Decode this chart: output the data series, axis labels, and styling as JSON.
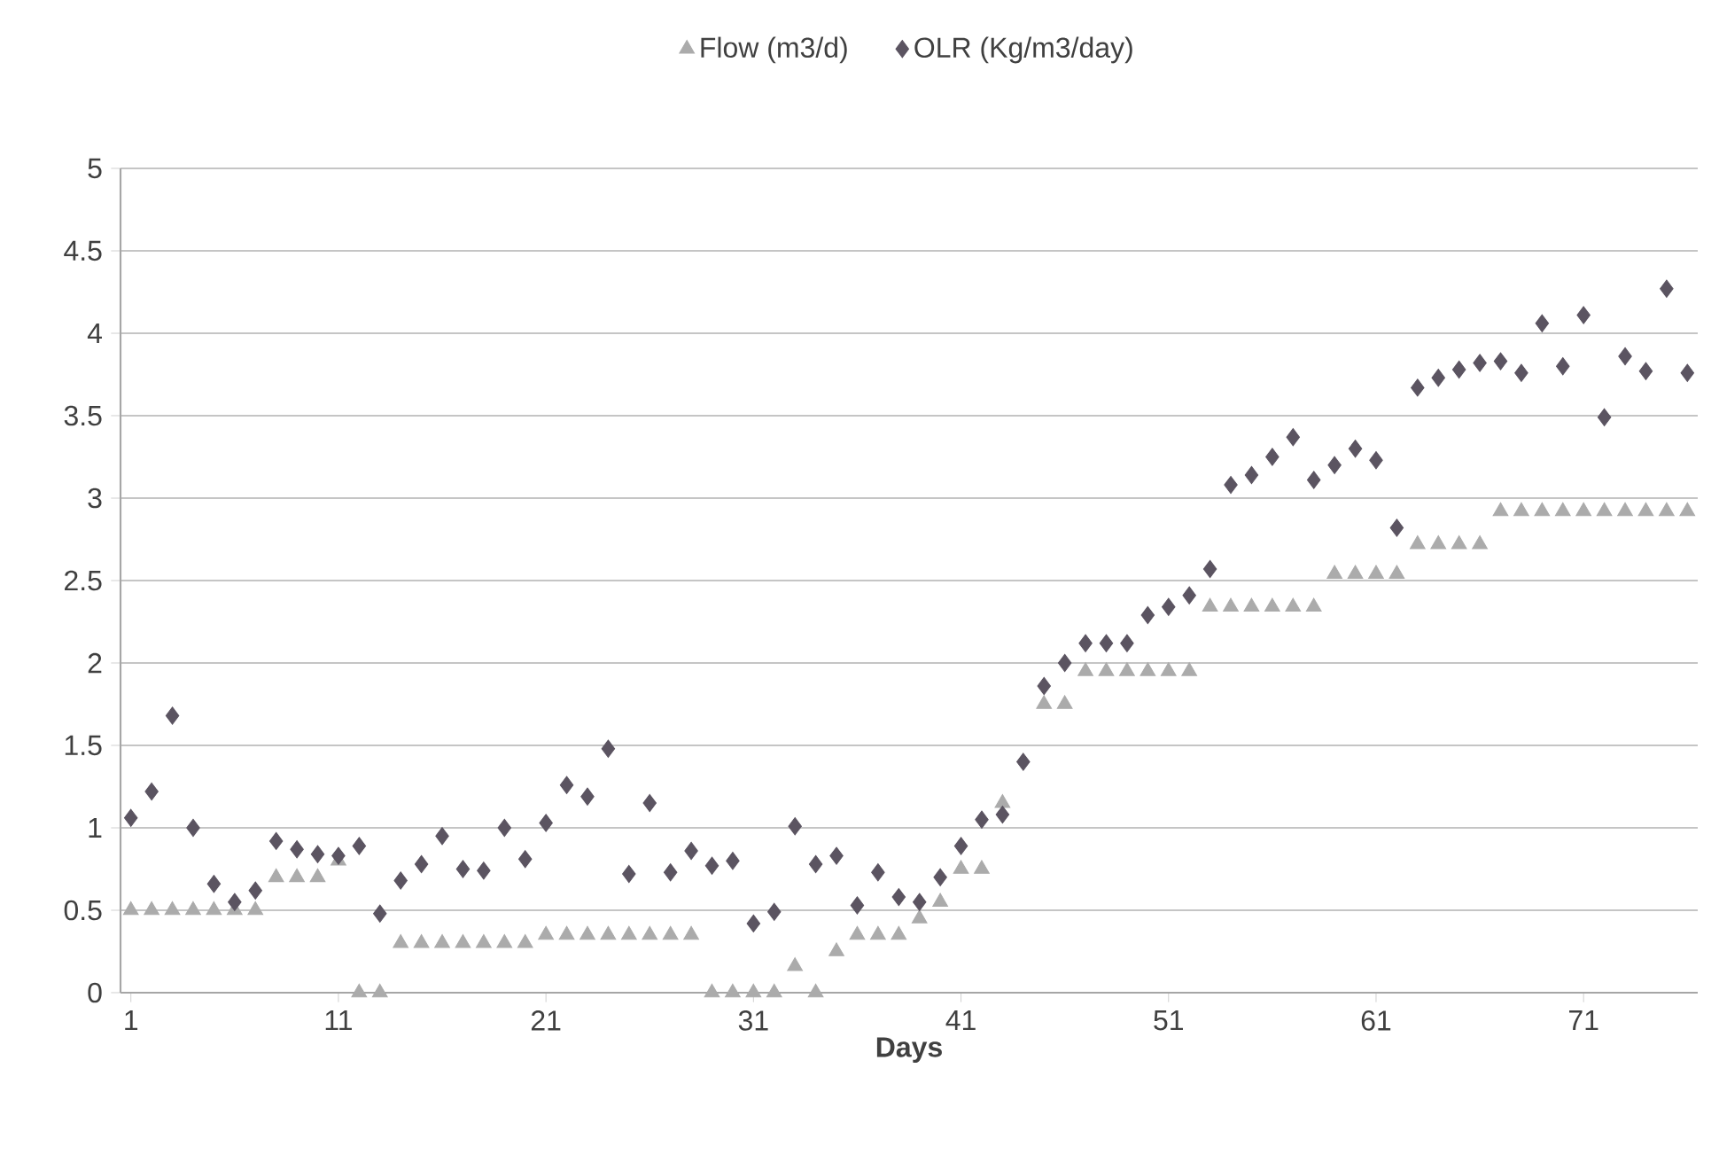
{
  "chart_data": {
    "type": "scatter",
    "xlabel": "Days",
    "xlim": [
      0.5,
      76.5
    ],
    "xticks": [
      1,
      11,
      21,
      31,
      41,
      51,
      61,
      71
    ],
    "ylim": [
      0,
      5
    ],
    "yticks": [
      0,
      0.5,
      1,
      1.5,
      2,
      2.5,
      3,
      3.5,
      4,
      4.5,
      5
    ],
    "grid": "y",
    "legend": "top",
    "x": [
      1,
      2,
      3,
      4,
      5,
      6,
      7,
      8,
      9,
      10,
      11,
      12,
      13,
      14,
      15,
      16,
      17,
      18,
      19,
      20,
      21,
      22,
      23,
      24,
      25,
      26,
      27,
      28,
      29,
      30,
      31,
      32,
      33,
      34,
      35,
      36,
      37,
      38,
      39,
      40,
      41,
      42,
      43,
      44,
      45,
      46,
      47,
      48,
      49,
      50,
      51,
      52,
      53,
      54,
      55,
      56,
      57,
      58,
      59,
      60,
      61,
      62,
      63,
      64,
      65,
      66,
      67,
      68,
      69,
      70,
      71,
      72,
      73,
      74,
      75,
      76
    ],
    "series": [
      {
        "name": "Flow (m3/d)",
        "color": "#ababab",
        "marker": "triangle",
        "values": [
          0.5,
          0.5,
          0.5,
          0.5,
          0.5,
          0.5,
          0.5,
          0.7,
          0.7,
          0.7,
          0.8,
          0,
          0,
          0.3,
          0.3,
          0.3,
          0.3,
          0.3,
          0.3,
          0.3,
          0.35,
          0.35,
          0.35,
          0.35,
          0.35,
          0.35,
          0.35,
          0.35,
          0,
          0,
          0,
          0,
          0.16,
          0,
          0.25,
          0.35,
          0.35,
          0.35,
          0.45,
          0.55,
          0.75,
          0.75,
          1.15,
          null,
          1.75,
          1.75,
          1.95,
          1.95,
          1.95,
          1.95,
          1.95,
          1.95,
          2.34,
          2.34,
          2.34,
          2.34,
          2.34,
          2.34,
          2.54,
          2.54,
          2.54,
          2.54,
          2.72,
          2.72,
          2.72,
          2.72,
          2.92,
          2.92,
          2.92,
          2.92,
          2.92,
          2.92,
          2.92,
          2.92,
          2.92,
          2.92
        ]
      },
      {
        "name": "OLR (Kg/m3/day)",
        "color": "#5b5461",
        "marker": "diamond",
        "values": [
          1.06,
          1.22,
          1.68,
          1.0,
          0.66,
          0.55,
          0.62,
          0.92,
          0.87,
          0.84,
          0.83,
          0.89,
          0.48,
          0.68,
          0.78,
          0.95,
          0.75,
          0.74,
          1.0,
          0.81,
          1.03,
          1.26,
          1.19,
          1.48,
          0.72,
          1.15,
          0.73,
          0.86,
          0.77,
          0.8,
          0.42,
          0.49,
          1.01,
          0.78,
          0.83,
          0.53,
          0.73,
          0.58,
          0.55,
          0.7,
          0.89,
          1.05,
          1.08,
          1.4,
          1.86,
          2.0,
          2.12,
          2.12,
          2.12,
          2.29,
          2.34,
          2.41,
          2.57,
          3.08,
          3.14,
          3.25,
          3.37,
          3.11,
          3.2,
          3.3,
          3.23,
          2.82,
          3.67,
          3.73,
          3.78,
          3.82,
          3.83,
          3.76,
          4.06,
          3.8,
          4.11,
          3.49,
          3.86,
          3.77,
          4.27,
          3.76
        ]
      }
    ]
  }
}
